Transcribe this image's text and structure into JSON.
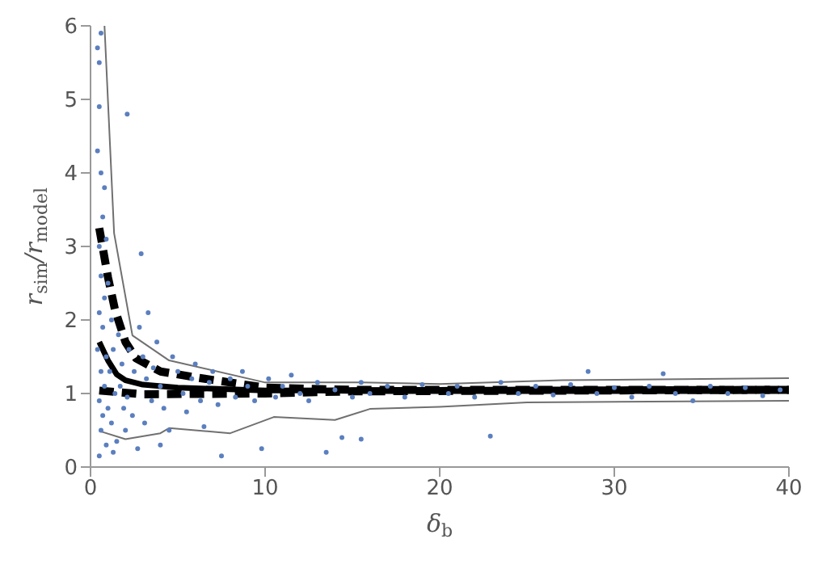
{
  "chart_data": {
    "type": "scatter",
    "xlabel": "δ$_{b}$",
    "ylabel": "r$_{sim}$/r$_{model}$",
    "xlim": [
      0,
      40
    ],
    "ylim": [
      0,
      6
    ],
    "xticks": [
      0,
      10,
      20,
      30,
      40
    ],
    "yticks": [
      0,
      1,
      2,
      3,
      4,
      5,
      6
    ],
    "grid": false,
    "legend": false,
    "series": [
      {
        "marker": "circle",
        "color": "#5b7fbf",
        "x": [
          0.4,
          0.5,
          0.6,
          0.5,
          0.4,
          0.6,
          0.8,
          0.7,
          0.5,
          0.9,
          0.6,
          0.8,
          0.5,
          1.0,
          0.7,
          0.4,
          0.9,
          0.6,
          0.8,
          0.5,
          0.7,
          1.0,
          0.6,
          0.9,
          0.5,
          1.2,
          1.3,
          1.1,
          1.4,
          1.2,
          1.5,
          1.3,
          1.6,
          1.8,
          1.7,
          1.9,
          2.0,
          2.2,
          2.1,
          2.5,
          2.4,
          2.7,
          2.9,
          2.1,
          2.8,
          3.0,
          3.2,
          3.5,
          3.1,
          3.3,
          3.8,
          3.6,
          4.0,
          4.2,
          4.5,
          4.0,
          4.7,
          5.0,
          5.3,
          5.5,
          5.8,
          6.0,
          6.3,
          6.5,
          6.8,
          7.0,
          7.3,
          7.5,
          8.0,
          8.3,
          8.7,
          9.0,
          9.4,
          9.8,
          10.2,
          10.6,
          11.0,
          11.5,
          12.0,
          12.5,
          13.0,
          13.5,
          14.0,
          14.4,
          15.0,
          15.5,
          15.5,
          16.0,
          17.0,
          18.0,
          19.0,
          20.5,
          21.0,
          22.0,
          22.9,
          23.5,
          24.5,
          25.5,
          26.5,
          27.5,
          28.5,
          29.0,
          30.0,
          31.0,
          32.0,
          32.8,
          33.5,
          34.5,
          35.5,
          36.5,
          37.5,
          38.5,
          39.5
        ],
        "values": [
          5.7,
          5.5,
          5.9,
          4.9,
          4.3,
          4.0,
          3.8,
          3.4,
          3.0,
          3.1,
          2.6,
          2.3,
          2.1,
          2.5,
          1.9,
          1.6,
          1.5,
          1.3,
          1.1,
          0.9,
          0.7,
          0.8,
          0.5,
          0.3,
          0.15,
          2.0,
          1.6,
          1.3,
          1.0,
          0.6,
          0.35,
          0.2,
          1.8,
          1.4,
          1.1,
          0.8,
          0.5,
          1.6,
          0.95,
          1.3,
          0.7,
          0.25,
          2.9,
          4.8,
          1.9,
          1.5,
          1.2,
          0.9,
          0.6,
          2.1,
          1.7,
          1.35,
          1.1,
          0.8,
          0.5,
          0.3,
          1.5,
          1.3,
          1.0,
          0.75,
          1.2,
          1.4,
          0.9,
          0.55,
          1.15,
          1.3,
          0.85,
          0.15,
          1.2,
          0.95,
          1.3,
          1.1,
          0.9,
          0.25,
          1.2,
          0.95,
          1.1,
          1.25,
          1.0,
          0.9,
          1.15,
          0.2,
          1.05,
          0.4,
          0.95,
          1.15,
          0.38,
          1.0,
          1.1,
          0.95,
          1.12,
          1.0,
          1.1,
          0.95,
          0.42,
          1.15,
          1.0,
          1.1,
          0.98,
          1.12,
          1.3,
          1.0,
          1.08,
          0.95,
          1.1,
          1.27,
          1.0,
          0.9,
          1.1,
          1.0,
          1.08,
          0.97,
          1.05
        ]
      },
      {
        "type": "line",
        "color": "#707070",
        "line_style": "solid",
        "x": [
          0.8,
          1.35,
          2.4,
          4.5,
          10,
          15.5,
          20,
          27,
          40
        ],
        "values": [
          6,
          3.18,
          1.79,
          1.45,
          1.15,
          1.15,
          1.13,
          1.18,
          1.21
        ]
      },
      {
        "type": "line",
        "color": "#707070",
        "line_style": "solid",
        "x": [
          0.5,
          2,
          4,
          4.5,
          8,
          10.5,
          14,
          16,
          20,
          25,
          40
        ],
        "values": [
          0.49,
          0.38,
          0.46,
          0.53,
          0.46,
          0.68,
          0.64,
          0.79,
          0.82,
          0.88,
          0.9
        ]
      },
      {
        "type": "line",
        "color": "#000000",
        "line_style": "dashed",
        "x": [
          0.5,
          1,
          1.4,
          2,
          2.6,
          4,
          6,
          8,
          10,
          15,
          40
        ],
        "values": [
          3.25,
          2.58,
          2.14,
          1.7,
          1.48,
          1.3,
          1.22,
          1.15,
          1.08,
          1.05,
          1.05
        ]
      },
      {
        "type": "line",
        "color": "#000000",
        "line_style": "dashed",
        "x": [
          0.5,
          3,
          10,
          15,
          40
        ],
        "values": [
          1.04,
          0.99,
          1.0,
          1.03,
          1.05
        ]
      },
      {
        "type": "line",
        "color": "#000000",
        "line_style": "solid",
        "x": [
          0.5,
          1,
          1.5,
          2,
          3,
          5,
          10,
          40
        ],
        "values": [
          1.7,
          1.45,
          1.26,
          1.18,
          1.12,
          1.08,
          1.04,
          1.05
        ]
      }
    ]
  }
}
